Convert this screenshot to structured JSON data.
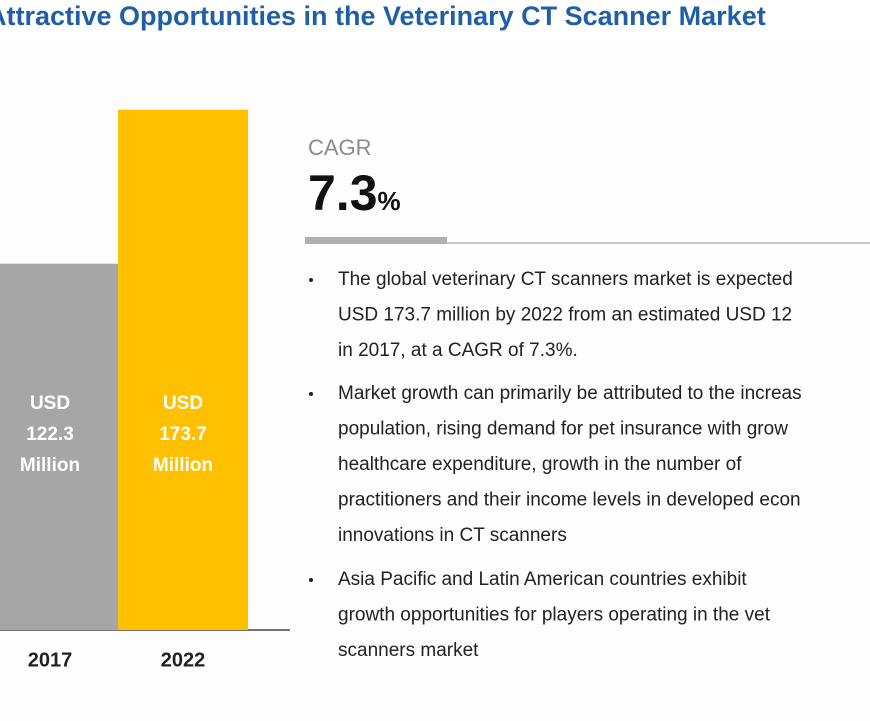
{
  "chart_data": {
    "type": "bar",
    "title": "Attractive Opportunities in the Veterinary CT Scanner Market",
    "categories": [
      "2017",
      "2022"
    ],
    "values": [
      122.3,
      173.7
    ],
    "value_labels": [
      [
        "USD",
        "122.3",
        "Million"
      ],
      [
        "USD",
        "173.7",
        "Million"
      ]
    ],
    "colors": [
      "#a6a6a6",
      "#ffc000"
    ],
    "cagr": {
      "label": "CAGR",
      "value": 7.3,
      "unit": "%"
    },
    "bullets": [
      [
        "The global veterinary CT scanners market is expected",
        "USD 173.7 million by 2022 from an estimated USD 12",
        "in 2017, at a CAGR of 7.3%."
      ],
      [
        "Market growth can primarily be attributed to the increas",
        "population, rising demand for pet insurance with grow",
        "healthcare expenditure, growth in the number of",
        "practitioners and their income levels in developed econ",
        "innovations in CT scanners"
      ],
      [
        "Asia Pacific and Latin American countries exhibit",
        "growth opportunities for players operating in the vet",
        "scanners market"
      ]
    ]
  }
}
